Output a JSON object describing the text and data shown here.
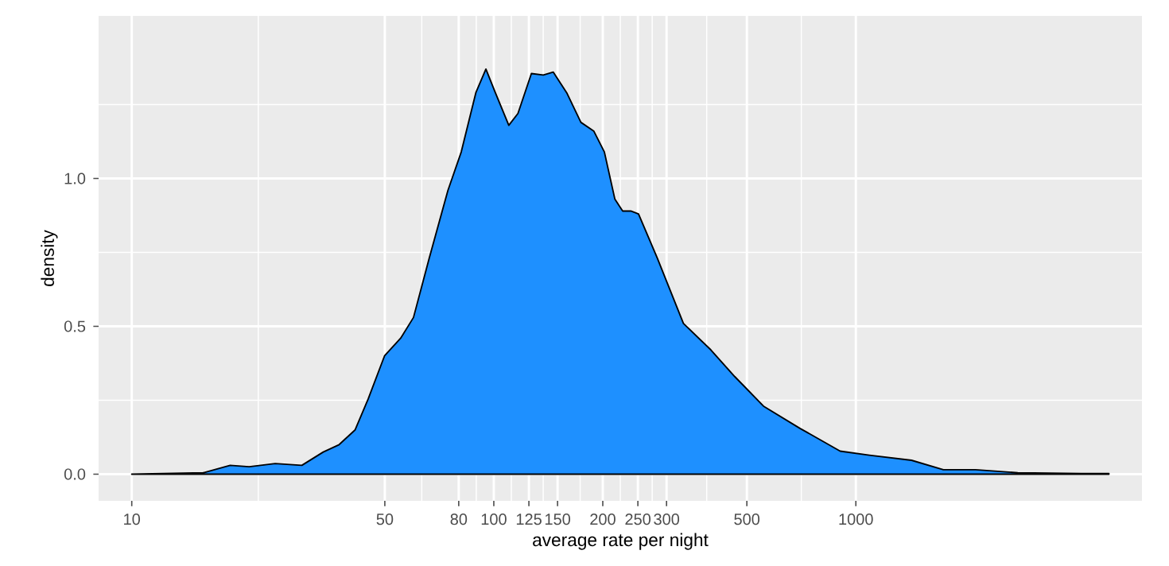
{
  "chart_data": {
    "type": "area",
    "xlabel": "average rate per night",
    "ylabel": "density",
    "color": "#1e90ff",
    "log": "x",
    "grid": true,
    "x": [
      10,
      15.8,
      18.7,
      21.1,
      24.9,
      29.5,
      33.8,
      37.4,
      41.4,
      45.0,
      49.9,
      55.3,
      60.0,
      66.3,
      74.7,
      81.3,
      89.2,
      95.1,
      101,
      110,
      116.6,
      127,
      137,
      146,
      159,
      174,
      189,
      202,
      216,
      227,
      239,
      251,
      283,
      334,
      398,
      463,
      556,
      701,
      905,
      1090,
      1425,
      1745,
      2140,
      2800,
      4200,
      5000
    ],
    "values": [
      0,
      0.005,
      0.03,
      0.025,
      0.036,
      0.03,
      0.075,
      0.1,
      0.15,
      0.255,
      0.4,
      0.46,
      0.53,
      0.73,
      0.96,
      1.09,
      1.29,
      1.37,
      1.29,
      1.18,
      1.22,
      1.355,
      1.35,
      1.36,
      1.29,
      1.19,
      1.16,
      1.09,
      0.93,
      0.89,
      0.89,
      0.88,
      0.73,
      0.51,
      0.42,
      0.33,
      0.23,
      0.155,
      0.078,
      0.064,
      0.047,
      0.015,
      0.015,
      0.005,
      0.002,
      0.002
    ],
    "xlim": [
      8.1,
      6170
    ],
    "ylim": [
      -0.09,
      1.55
    ],
    "xticks": [
      10,
      50,
      80,
      100,
      125,
      150,
      200,
      250,
      300,
      500,
      1000
    ],
    "yticks": [
      {
        "value": 0,
        "label": "0.0"
      },
      {
        "value": 0.5,
        "label": "0.5"
      },
      {
        "value": 1,
        "label": "1.0"
      }
    ]
  }
}
